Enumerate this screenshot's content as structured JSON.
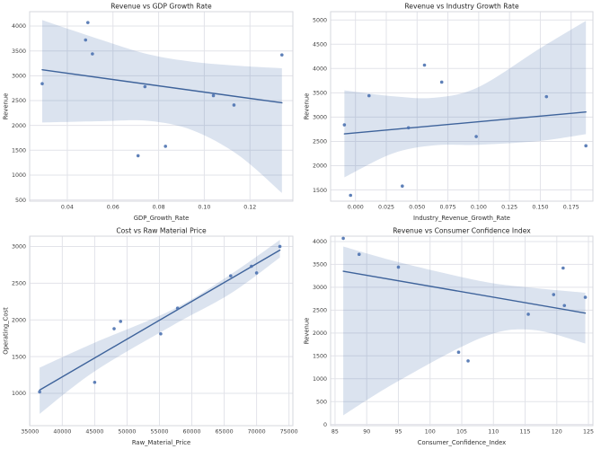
{
  "figure": {
    "background": "#ffffff",
    "rows": 2,
    "cols": 2
  },
  "style": {
    "point_color": "#4c72b0",
    "line_color": "#3e639b",
    "band_color": "#4c72b0",
    "band_opacity": 0.2,
    "grid_color": "#e2e3e9",
    "spine_color": "#d6d7dd",
    "tick_color": "#3d3d3d",
    "label_color": "#2f2f2f",
    "title_color": "#262626"
  },
  "chart_data": [
    {
      "id": "revenue-vs-gdp-growth-rate",
      "type": "scatter",
      "title": "Revenue vs GDP Growth Rate",
      "xlabel": "GDP_Growth_Rate",
      "ylabel": "Revenue",
      "x": [
        0.029,
        0.048,
        0.049,
        0.051,
        0.071,
        0.074,
        0.083,
        0.104,
        0.113,
        0.134
      ],
      "y": [
        2840,
        3720,
        4070,
        3440,
        1390,
        2780,
        1580,
        2600,
        2410,
        3420
      ],
      "trend_line": {
        "x": [
          0.029,
          0.134
        ],
        "y": [
          3120,
          2455
        ]
      },
      "ci_band": {
        "x": [
          0.029,
          0.055,
          0.0756,
          0.095,
          0.115,
          0.134
        ],
        "upper": [
          4120,
          3720,
          3430,
          3280,
          3200,
          3150
        ],
        "lower": [
          2060,
          2085,
          2090,
          1900,
          1400,
          640
        ]
      },
      "xlim": [
        0.0235,
        0.1388
      ],
      "ylim": [
        475,
        4290
      ],
      "xticks": [
        0.04,
        0.06,
        0.08,
        0.1,
        0.12
      ],
      "xtick_labels": [
        "0.04",
        "0.06",
        "0.08",
        "0.10",
        "0.12"
      ],
      "yticks": [
        500,
        1000,
        1500,
        2000,
        2500,
        3000,
        3500,
        4000
      ],
      "ytick_labels": [
        "500",
        "1000",
        "1500",
        "2000",
        "2500",
        "3000",
        "3500",
        "4000"
      ],
      "grid": true,
      "legend": "none"
    },
    {
      "id": "revenue-vs-industry-growth-rate",
      "type": "scatter",
      "title": "Revenue vs Industry Growth Rate",
      "xlabel": "Industry_Revenue_Growth_Rate",
      "ylabel": "Revenue",
      "x": [
        -0.009,
        -0.004,
        0.011,
        0.038,
        0.043,
        0.056,
        0.07,
        0.098,
        0.155,
        0.187
      ],
      "y": [
        2840,
        1390,
        3440,
        1580,
        2780,
        4070,
        3720,
        2600,
        3420,
        2410
      ],
      "trend_line": {
        "x": [
          -0.009,
          0.187
        ],
        "y": [
          2655,
          3105
        ]
      },
      "ci_band": {
        "x": [
          -0.009,
          0.03,
          0.0645,
          0.1,
          0.15,
          0.187
        ],
        "upper": [
          3550,
          3430,
          3400,
          3620,
          4420,
          4980
        ],
        "lower": [
          1760,
          2250,
          2420,
          2430,
          2510,
          2650
        ]
      },
      "xlim": [
        -0.0202,
        0.1927
      ],
      "ylim": [
        1270,
        5170
      ],
      "xticks": [
        0.0,
        0.025,
        0.05,
        0.075,
        0.1,
        0.125,
        0.15,
        0.175
      ],
      "xtick_labels": [
        "0.000",
        "0.025",
        "0.050",
        "0.075",
        "0.100",
        "0.125",
        "0.150",
        "0.175"
      ],
      "yticks": [
        1500,
        2000,
        2500,
        3000,
        3500,
        4000,
        4500,
        5000
      ],
      "ytick_labels": [
        "1500",
        "2000",
        "2500",
        "3000",
        "3500",
        "4000",
        "4500",
        "5000"
      ],
      "grid": true,
      "legend": "none"
    },
    {
      "id": "cost-vs-raw-material-price",
      "type": "scatter",
      "title": "Cost vs Raw Material Price",
      "xlabel": "Raw_Material_Price",
      "ylabel": "Operating_Cost",
      "x": [
        36500,
        45000,
        48000,
        49000,
        55200,
        57800,
        66000,
        69200,
        70000,
        73600
      ],
      "y": [
        1020,
        1150,
        1880,
        1980,
        1810,
        2160,
        2600,
        2730,
        2640,
        3000
      ],
      "trend_line": {
        "x": [
          36500,
          73600
        ],
        "y": [
          1045,
          2950
        ]
      },
      "ci_band": {
        "x": [
          36500,
          45000,
          57030,
          66000,
          73600
        ],
        "upper": [
          1350,
          1690,
          2140,
          2620,
          3090
        ],
        "lower": [
          720,
          1300,
          1925,
          2360,
          2850
        ]
      },
      "xlim": [
        34960,
        75600
      ],
      "ylim": [
        560,
        3140
      ],
      "xticks": [
        35000,
        40000,
        45000,
        50000,
        55000,
        60000,
        65000,
        70000,
        75000
      ],
      "xtick_labels": [
        "35000",
        "40000",
        "45000",
        "50000",
        "55000",
        "60000",
        "65000",
        "70000",
        "75000"
      ],
      "yticks": [
        1000,
        1500,
        2000,
        2500,
        3000
      ],
      "ytick_labels": [
        "1000",
        "1500",
        "2000",
        "2500",
        "3000"
      ],
      "grid": true,
      "legend": "none"
    },
    {
      "id": "revenue-vs-consumer-confidence-index",
      "type": "scatter",
      "title": "Revenue vs Consumer Confidence Index",
      "xlabel": "Consumer_Confidence_Index",
      "ylabel": "Revenue",
      "x": [
        86.3,
        88.8,
        95.0,
        104.5,
        106.0,
        115.5,
        119.5,
        121.0,
        121.2,
        124.5
      ],
      "y": [
        4070,
        3720,
        3440,
        1580,
        1390,
        2410,
        2840,
        3420,
        2600,
        2780
      ],
      "trend_line": {
        "x": [
          86.3,
          124.5
        ],
        "y": [
          3350,
          2435
        ]
      },
      "ci_band": {
        "x": [
          86.3,
          95,
          108.2,
          116,
          124.5
        ],
        "upper": [
          3890,
          3550,
          3130,
          2990,
          2880
        ],
        "lower": [
          200,
          950,
          1900,
          2070,
          1770
        ]
      },
      "xlim": [
        84.3,
        125.7
      ],
      "ylim": [
        -26,
        4117
      ],
      "xticks": [
        85,
        90,
        95,
        100,
        105,
        110,
        115,
        120,
        125
      ],
      "xtick_labels": [
        "85",
        "90",
        "95",
        "100",
        "105",
        "110",
        "115",
        "120",
        "125"
      ],
      "yticks": [
        0,
        500,
        1000,
        1500,
        2000,
        2500,
        3000,
        3500,
        4000
      ],
      "ytick_labels": [
        "0",
        "500",
        "1000",
        "1500",
        "2000",
        "2500",
        "3000",
        "3500",
        "4000"
      ],
      "grid": true,
      "legend": "none"
    }
  ]
}
